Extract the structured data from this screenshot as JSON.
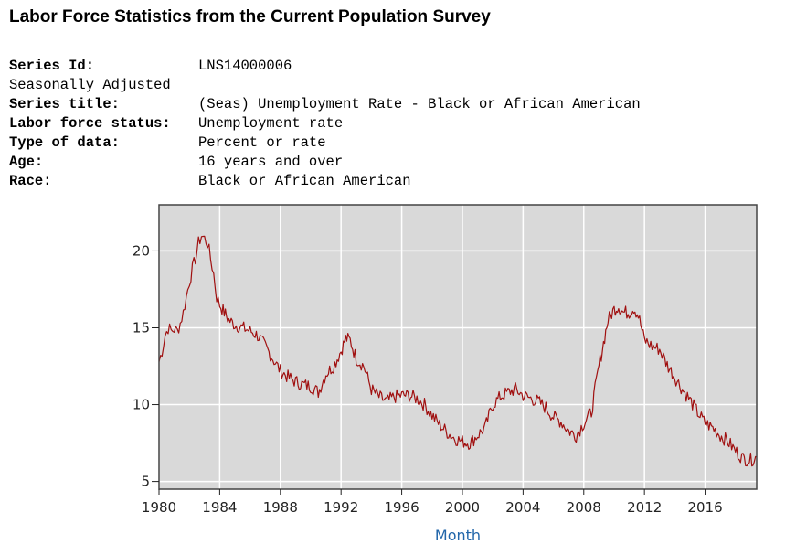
{
  "page": {
    "title": "Labor Force Statistics from the Current Population Survey"
  },
  "series_info": {
    "series_id_label": "Series Id:",
    "series_id": "LNS14000006",
    "seasonal": "Seasonally Adjusted",
    "series_title_label": "Series title:",
    "series_title": "(Seas) Unemployment Rate - Black or African American",
    "labor_force_status_label": "Labor force status:",
    "labor_force_status": "Unemployment rate",
    "type_of_data_label": "Type of data:",
    "type_of_data": "Percent or rate",
    "age_label": "Age:",
    "age": "16 years and over",
    "race_label": "Race:",
    "race": "Black or African American"
  },
  "chart_data": {
    "type": "line",
    "title": "",
    "xlabel": "Month",
    "ylabel": "",
    "xlim": [
      1980.0,
      2019.4
    ],
    "ylim": [
      4.5,
      23.0
    ],
    "x_ticks": [
      1980,
      1984,
      1988,
      1992,
      1996,
      2000,
      2004,
      2008,
      2012,
      2016
    ],
    "y_ticks": [
      5,
      10,
      15,
      20
    ],
    "grid": true,
    "colors": {
      "line": "#a01010",
      "plot_bg": "#d9d9d9",
      "grid": "#ffffff",
      "frame": "#444444",
      "xlabel": "#2266aa"
    },
    "series": [
      {
        "values_note_x": "decimal year",
        "x": [
          1980.0,
          1980.2,
          1980.4,
          1980.6,
          1980.8,
          1981.0,
          1981.2,
          1981.4,
          1981.6,
          1981.8,
          1982.0,
          1982.2,
          1982.4,
          1982.6,
          1982.8,
          1983.0,
          1983.2,
          1983.4,
          1983.6,
          1983.8,
          1984.0,
          1984.3,
          1984.6,
          1985.0,
          1985.5,
          1986.0,
          1986.5,
          1987.0,
          1987.5,
          1988.0,
          1988.5,
          1989.0,
          1989.5,
          1990.0,
          1990.5,
          1991.0,
          1991.5,
          1992.0,
          1992.3,
          1992.6,
          1993.0,
          1993.5,
          1994.0,
          1994.5,
          1995.0,
          1995.5,
          1996.0,
          1996.5,
          1997.0,
          1997.5,
          1998.0,
          1998.5,
          1999.0,
          1999.5,
          2000.0,
          2000.5,
          2001.0,
          2001.5,
          2002.0,
          2002.5,
          2003.0,
          2003.5,
          2004.0,
          2004.5,
          2005.0,
          2005.5,
          2006.0,
          2006.5,
          2007.0,
          2007.5,
          2008.0,
          2008.5,
          2009.0,
          2009.3,
          2009.6,
          2010.0,
          2010.3,
          2010.6,
          2011.0,
          2011.3,
          2011.6,
          2012.0,
          2012.5,
          2013.0,
          2013.5,
          2014.0,
          2014.5,
          2015.0,
          2015.5,
          2016.0,
          2016.5,
          2017.0,
          2017.5,
          2018.0,
          2018.5,
          2019.0,
          2019.4
        ],
        "y": [
          12.8,
          13.5,
          14.5,
          15.0,
          14.8,
          14.9,
          14.8,
          15.3,
          16.0,
          17.0,
          18.0,
          18.8,
          19.5,
          20.5,
          21.0,
          20.8,
          20.5,
          19.5,
          18.5,
          17.0,
          16.5,
          16.0,
          15.5,
          15.2,
          15.0,
          14.8,
          14.5,
          13.8,
          13.0,
          12.2,
          11.8,
          11.5,
          11.3,
          11.2,
          10.8,
          12.0,
          12.5,
          13.5,
          14.3,
          14.2,
          13.0,
          12.5,
          11.0,
          10.5,
          10.2,
          10.5,
          10.6,
          10.6,
          10.4,
          10.0,
          9.3,
          8.7,
          8.2,
          7.8,
          7.6,
          7.5,
          8.0,
          8.5,
          10.0,
          10.5,
          10.8,
          11.0,
          10.6,
          10.4,
          10.2,
          9.8,
          9.2,
          8.9,
          8.3,
          8.0,
          8.8,
          9.5,
          12.5,
          14.0,
          15.5,
          16.2,
          16.4,
          16.0,
          16.0,
          16.3,
          15.8,
          14.2,
          13.8,
          13.6,
          12.6,
          11.8,
          11.0,
          10.3,
          9.5,
          8.8,
          8.5,
          8.0,
          7.6,
          7.0,
          6.5,
          6.4,
          6.6
        ]
      }
    ]
  }
}
